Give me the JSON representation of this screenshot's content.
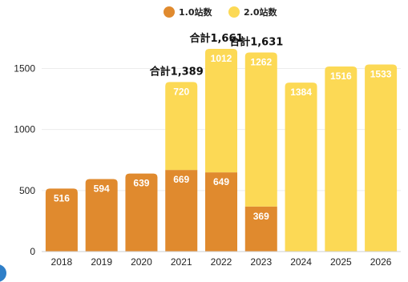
{
  "chart_data": {
    "type": "bar",
    "stacked": true,
    "categories": [
      "2018",
      "2019",
      "2020",
      "2021",
      "2022",
      "2023",
      "2024",
      "2025",
      "2026"
    ],
    "series": [
      {
        "name": "1.0站数",
        "color": "#e08a2e",
        "values": [
          516,
          594,
          639,
          669,
          649,
          369,
          0,
          0,
          0
        ]
      },
      {
        "name": "2.0站数",
        "color": "#fcd955",
        "values": [
          0,
          0,
          0,
          720,
          1012,
          1262,
          1384,
          1516,
          1533
        ]
      }
    ],
    "totals": [
      {
        "category": "2021",
        "label": "合計1,389"
      },
      {
        "category": "2022",
        "label": "合計1,661"
      },
      {
        "category": "2023",
        "label": "合計1,631"
      }
    ],
    "yticks": [
      0,
      500,
      1000,
      1500
    ],
    "ylim": [
      0,
      1700
    ],
    "grid": true,
    "legend_position": "top-center",
    "title": "",
    "xlabel": "",
    "ylabel": ""
  }
}
